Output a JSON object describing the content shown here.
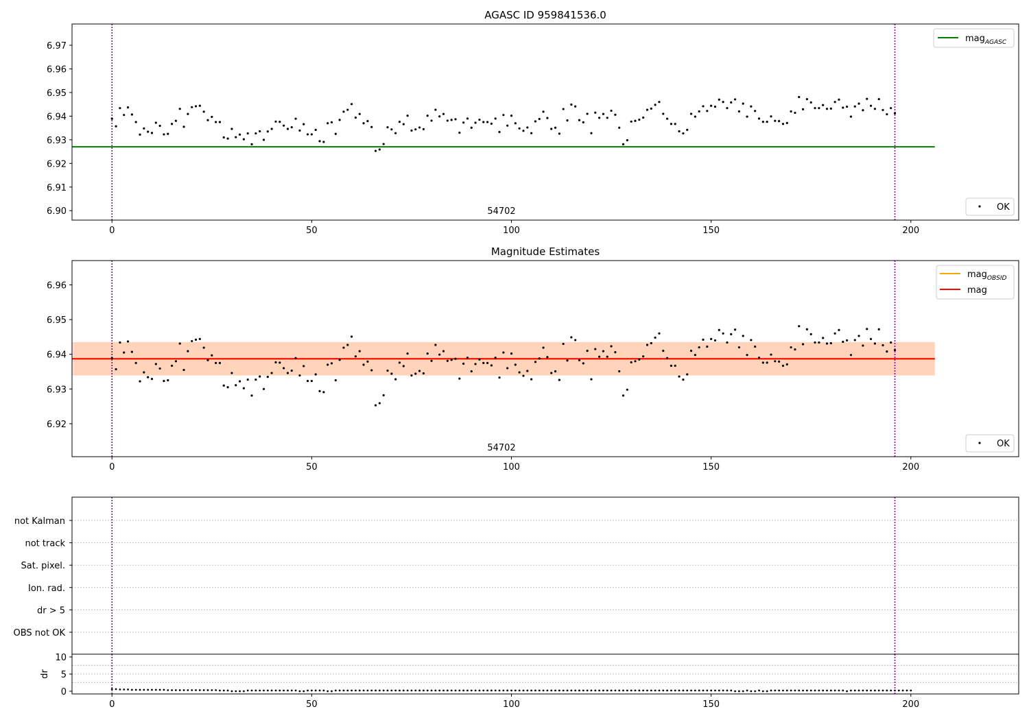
{
  "chart_data": [
    {
      "type": "scatter",
      "title": "AGASC ID 959841536.0",
      "xlim": [
        -10,
        227
      ],
      "ylim": [
        6.896,
        6.979
      ],
      "xticks": [
        0,
        50,
        100,
        150,
        200
      ],
      "yticks": [
        6.9,
        6.91,
        6.92,
        6.93,
        6.94,
        6.95,
        6.96,
        6.97
      ],
      "obsid_label": "54702",
      "obsid_boundaries": [
        0,
        196
      ],
      "hlines": [
        {
          "name": "mag_AGASC",
          "value": 6.927,
          "x_range": [
            -10,
            206
          ],
          "color": "#008000"
        }
      ],
      "legend": [
        {
          "base": "mag",
          "sub": "AGASC",
          "color": "#008000",
          "kind": "line"
        }
      ],
      "legend2": [
        {
          "label": "OK",
          "kind": "point"
        }
      ]
    },
    {
      "type": "scatter",
      "title": "Magnitude Estimates",
      "xlim": [
        -10,
        227
      ],
      "ylim": [
        6.9105,
        6.967
      ],
      "xticks": [
        0,
        50,
        100,
        150,
        200
      ],
      "yticks": [
        6.92,
        6.93,
        6.94,
        6.95,
        6.96
      ],
      "obsid_label": "54702",
      "obsid_boundaries": [
        0,
        196
      ],
      "hlines": [
        {
          "name": "mag_OBSID",
          "value": 6.9387,
          "x_range": [
            -10,
            206
          ],
          "color": "#ffa500"
        },
        {
          "name": "mag",
          "value": 6.9387,
          "x_range": [
            -10,
            206
          ],
          "color": "#ff0000"
        }
      ],
      "bands": [
        {
          "low": 6.9339,
          "high": 6.9435,
          "x_range": [
            -10,
            206
          ]
        }
      ],
      "legend": [
        {
          "base": "mag",
          "sub": "OBSID",
          "color": "#ffa500",
          "kind": "line"
        },
        {
          "base": "mag",
          "sub": "",
          "color": "#ff0000",
          "kind": "line"
        }
      ],
      "legend2": [
        {
          "label": "OK",
          "kind": "point"
        }
      ]
    },
    {
      "type": "table",
      "title": "",
      "flag_labels": [
        "not Kalman",
        "not track",
        "Sat. pixel.",
        "Ion. rad.",
        "dr > 5",
        "OBS not OK"
      ],
      "obsid_boundaries": [
        0,
        196
      ]
    },
    {
      "type": "scatter",
      "ylabel": "dr",
      "xlim": [
        -10,
        227
      ],
      "ylim": [
        -0.8,
        10.8
      ],
      "xticks": [
        0,
        50,
        100,
        150,
        200
      ],
      "yticks": [
        0,
        5,
        10
      ],
      "obsid_boundaries": [
        0,
        196
      ]
    }
  ],
  "series": {
    "mag": [
      6.9389,
      6.9357,
      6.9434,
      6.9405,
      6.9437,
      6.9407,
      6.9375,
      6.9322,
      6.9348,
      6.9334,
      6.9329,
      6.9372,
      6.9359,
      6.9323,
      6.9325,
      6.9367,
      6.938,
      6.9431,
      6.9355,
      6.9409,
      6.9438,
      6.9442,
      6.9444,
      6.9419,
      6.9383,
      6.9397,
      6.9375,
      6.9375,
      6.931,
      6.9305,
      6.9346,
      6.9311,
      6.9322,
      6.9302,
      6.9327,
      6.9281,
      6.9327,
      6.9336,
      6.93,
      6.9335,
      6.9346,
      6.9377,
      6.9376,
      6.936,
      6.9346,
      6.9353,
      6.9389,
      6.9339,
      6.9366,
      6.9323,
      6.9323,
      6.9342,
      6.9294,
      6.9291,
      6.937,
      6.9374,
      6.9325,
      6.9384,
      6.9419,
      6.9427,
      6.9451,
      6.9394,
      6.9409,
      6.937,
      6.9379,
      6.9354,
      6.9253,
      6.9259,
      6.9282,
      6.9353,
      6.9344,
      6.9328,
      6.9376,
      6.9366,
      6.9402,
      6.9339,
      6.9344,
      6.9352,
      6.9345,
      6.9402,
      6.9381,
      6.9427,
      6.9399,
      6.9409,
      6.9381,
      6.9384,
      6.9387,
      6.933,
      6.9373,
      6.939,
      6.9351,
      6.9372,
      6.9385,
      6.9375,
      6.9375,
      6.9368,
      6.939,
      6.9333,
      6.9405,
      6.936,
      6.9402,
      6.937,
      6.9348,
      6.9338,
      6.9352,
      6.9328,
      6.9378,
      6.9388,
      6.9419,
      6.9392,
      6.9346,
      6.9351,
      6.9326,
      6.943,
      6.9382,
      6.9449,
      6.9441,
      6.9383,
      6.9374,
      6.941,
      6.9328,
      6.9415,
      6.9393,
      6.9409,
      6.9393,
      6.9423,
      6.9406,
      6.9351,
      6.9281,
      6.9298,
      6.9377,
      6.938,
      6.9385,
      6.9394,
      6.9427,
      6.9432,
      6.9448,
      6.946,
      6.941,
      6.9389,
      6.9367,
      6.9367,
      6.9336,
      6.9327,
      6.9342,
      6.941,
      6.9398,
      6.942,
      6.9442,
      6.9422,
      6.9444,
      6.944,
      6.947,
      6.946,
      6.9434,
      6.9458,
      6.9471,
      6.942,
      6.9453,
      6.9398,
      6.9441,
      6.9422,
      6.939,
      6.9376,
      6.9376,
      6.9399,
      6.938,
      6.9379,
      6.9367,
      6.9371,
      6.942,
      6.9414,
      6.9481,
      6.9429,
      6.9472,
      6.9458,
      6.9434,
      6.9434,
      6.9447,
      6.9431,
      6.9432,
      6.946,
      6.947,
      6.9436,
      6.944,
      6.9398,
      6.9441,
      6.9453,
      6.9425,
      6.9473,
      6.9444,
      6.9431,
      6.9472,
      6.9426,
      6.9408,
      6.9434,
      6.9412
    ],
    "dr": [
      0.6,
      0.6,
      0.5,
      0.5,
      0.5,
      0.4,
      0.4,
      0.4,
      0.4,
      0.4,
      0.4,
      0.4,
      0.4,
      0.4,
      0.3,
      0.3,
      0.3,
      0.3,
      0.3,
      0.3,
      0.3,
      0.3,
      0.3,
      0.3,
      0.3,
      0.3,
      0.3,
      0.2,
      0.2,
      0.2,
      0.0,
      0.0,
      0.0,
      0.0,
      0.2,
      0.2,
      0.2,
      0.2,
      0.2,
      0.2,
      0.2,
      0.2,
      0.2,
      0.2,
      0.2,
      0.2,
      0.2,
      0.0,
      0.0,
      0.2,
      0.2,
      0.2,
      0.2,
      0.2,
      0.0,
      0.0,
      0.2,
      0.2,
      0.2,
      0.2,
      0.2,
      0.2,
      0.2,
      0.2,
      0.2,
      0.2,
      0.2,
      0.2,
      0.2,
      0.2,
      0.2,
      0.2,
      0.2,
      0.2,
      0.2,
      0.2,
      0.2,
      0.2,
      0.2,
      0.2,
      0.2,
      0.2,
      0.2,
      0.2,
      0.2,
      0.2,
      0.2,
      0.2,
      0.2,
      0.2,
      0.2,
      0.2,
      0.2,
      0.2,
      0.2,
      0.2,
      0.2,
      0.2,
      0.2,
      0.2,
      0.2,
      0.2,
      0.2,
      0.2,
      0.2,
      0.2,
      0.2,
      0.2,
      0.2,
      0.2,
      0.2,
      0.2,
      0.2,
      0.2,
      0.2,
      0.2,
      0.2,
      0.2,
      0.2,
      0.2,
      0.2,
      0.2,
      0.2,
      0.2,
      0.2,
      0.2,
      0.2,
      0.2,
      0.2,
      0.2,
      0.2,
      0.2,
      0.2,
      0.2,
      0.2,
      0.2,
      0.2,
      0.2,
      0.2,
      0.2,
      0.2,
      0.2,
      0.2,
      0.2,
      0.2,
      0.2,
      0.2,
      0.2,
      0.2,
      0.2,
      0.2,
      0.2,
      0.2,
      0.2,
      0.2,
      0.2,
      0.0,
      0.0,
      0.0,
      0.2,
      0.0,
      0.0,
      0.2,
      0.0,
      0.0,
      0.2,
      0.2,
      0.2,
      0.2,
      0.2,
      0.2,
      0.2,
      0.2,
      0.2,
      0.2,
      0.2,
      0.2,
      0.2,
      0.2,
      0.2,
      0.2,
      0.2,
      0.2,
      0.2,
      0.0,
      0.2,
      0.2,
      0.2,
      0.2,
      0.2,
      0.2,
      0.2,
      0.2,
      0.2,
      0.2,
      0.2,
      0.2,
      0.2,
      0.2,
      0.2,
      0.2
    ]
  }
}
